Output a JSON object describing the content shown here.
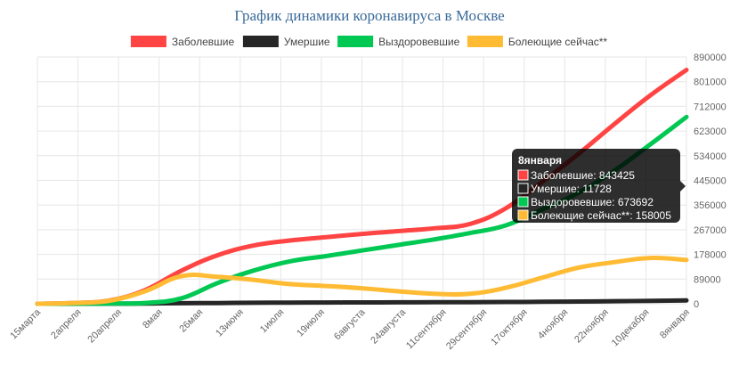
{
  "chart_data": {
    "type": "line",
    "title": "График динамики коронавируса в Москве",
    "x_tick_labels": [
      "15марта",
      "2апреля",
      "20апреля",
      "8мая",
      "26мая",
      "13июня",
      "1июля",
      "19июля",
      "6августа",
      "24августа",
      "11сентября",
      "29сентября",
      "17октября",
      "4ноября",
      "22ноября",
      "10декабря",
      "8января"
    ],
    "y_tick_labels": [
      "0",
      "89000",
      "178000",
      "267000",
      "356000",
      "445000",
      "534000",
      "623000",
      "712000",
      "801000",
      "890000"
    ],
    "ylim": [
      0,
      890000
    ],
    "grid": true,
    "legend_position": "top",
    "series": [
      {
        "name": "Заболевшие",
        "color": "#ff4444",
        "values": [
          100,
          3000,
          12000,
          50000,
          120000,
          175000,
          210000,
          228000,
          240000,
          252000,
          262000,
          272000,
          288000,
          345000,
          440000,
          540000,
          648000,
          752000,
          843425
        ]
      },
      {
        "name": "Умершие",
        "color": "#262626",
        "values": [
          0,
          20,
          200,
          900,
          1800,
          2600,
          3400,
          4100,
          4500,
          4800,
          5100,
          5400,
          5800,
          6300,
          7000,
          8000,
          9200,
          10600,
          11728
        ]
      },
      {
        "name": "Выздоровевшие",
        "color": "#00c853",
        "values": [
          0,
          200,
          1000,
          3000,
          20000,
          75000,
          120000,
          153000,
          172000,
          192000,
          212000,
          232000,
          255000,
          283000,
          340000,
          400000,
          480000,
          575000,
          673692
        ]
      },
      {
        "name": "Болеющие сейчас**",
        "color": "#ffbb33",
        "values": [
          100,
          2800,
          11000,
          46000,
          100000,
          97000,
          86000,
          71000,
          64000,
          56000,
          45000,
          36000,
          36000,
          58000,
          94000,
          130000,
          150000,
          165000,
          158005
        ]
      }
    ],
    "tooltip": {
      "title": "8января",
      "lines": [
        "Заболевшие: 843425",
        "Умершие: 11728",
        "Выздоровевшие: 673692",
        "Болеющие сейчас**: 158005"
      ]
    }
  }
}
